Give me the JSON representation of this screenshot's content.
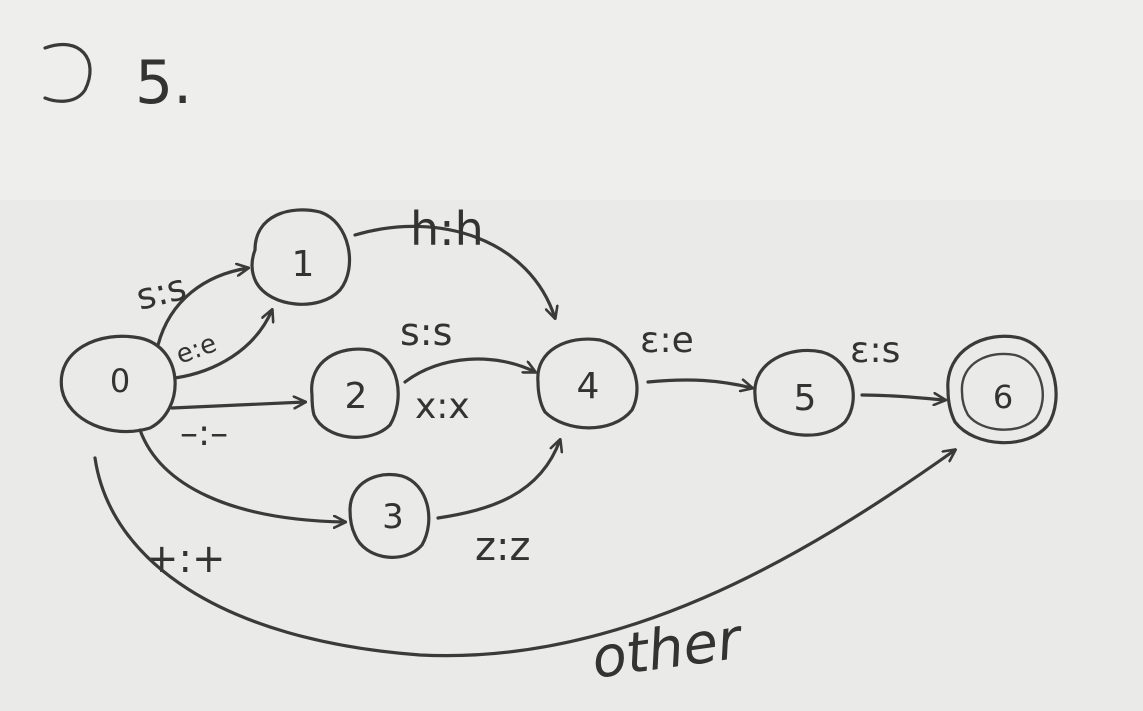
{
  "problem_number": "5.",
  "states": [
    {
      "id": "s0",
      "label": "0",
      "final": false
    },
    {
      "id": "s1",
      "label": "1",
      "final": false
    },
    {
      "id": "s2",
      "label": "2",
      "final": false
    },
    {
      "id": "s3",
      "label": "3",
      "final": false
    },
    {
      "id": "s4",
      "label": "4",
      "final": false
    },
    {
      "id": "s5",
      "label": "5",
      "final": false
    },
    {
      "id": "s6",
      "label": "6",
      "final": true
    }
  ],
  "transitions": [
    {
      "from": "0",
      "to": "1",
      "label": "s:s"
    },
    {
      "from": "0",
      "to": "1",
      "label": "e:e"
    },
    {
      "from": "0",
      "to": "2",
      "label": "–:–"
    },
    {
      "from": "0",
      "to": "3",
      "label": "+:+"
    },
    {
      "from": "0",
      "to": "6",
      "label": "other"
    },
    {
      "from": "1",
      "to": "4",
      "label": "h:h"
    },
    {
      "from": "2",
      "to": "4",
      "label": "s:s"
    },
    {
      "from": "2",
      "to": "4",
      "label": "x:x"
    },
    {
      "from": "3",
      "to": "4",
      "label": "z:z"
    },
    {
      "from": "4",
      "to": "5",
      "label": "ε:e"
    },
    {
      "from": "5",
      "to": "6",
      "label": "ε:s"
    }
  ],
  "colors": {
    "paper": "#e9e9e7",
    "pencil": "#3a3a3a"
  }
}
